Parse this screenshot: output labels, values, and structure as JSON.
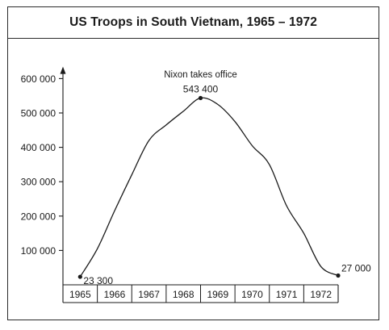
{
  "chart_data": {
    "type": "line",
    "title": "US Troops in South Vietnam, 1965 – 1972",
    "xlabel": "",
    "ylabel": "",
    "categories": [
      "1965",
      "1966",
      "1967",
      "1968",
      "1969",
      "1970",
      "1971",
      "1972"
    ],
    "y_ticks": [
      {
        "value": 100000,
        "label": "100 000"
      },
      {
        "value": 200000,
        "label": "200 000"
      },
      {
        "value": 300000,
        "label": "300 000"
      },
      {
        "value": 400000,
        "label": "400 000"
      },
      {
        "value": 500000,
        "label": "500 000"
      },
      {
        "value": 600000,
        "label": "600 000"
      }
    ],
    "ylim": [
      0,
      630000
    ],
    "x": [
      1965.0,
      1965.5,
      1966.0,
      1966.5,
      1967.0,
      1967.5,
      1968.0,
      1968.5,
      1969.0,
      1969.5,
      1970.0,
      1970.5,
      1971.0,
      1971.5,
      1972.0,
      1972.5
    ],
    "values": [
      23300,
      105000,
      215000,
      320000,
      420000,
      465000,
      505000,
      543400,
      525000,
      475000,
      405000,
      350000,
      230000,
      150000,
      53000,
      27000
    ],
    "markers": [
      {
        "x": 1965.0,
        "y": 23300,
        "label": "23 300"
      },
      {
        "x": 1968.5,
        "y": 543400,
        "label": "543 400"
      },
      {
        "x": 1972.5,
        "y": 27000,
        "label": "27 000"
      }
    ],
    "annotations": [
      {
        "text": "Nixon takes office",
        "x": 1968.5
      }
    ],
    "grid": false,
    "line_color": "#1a1a1a"
  }
}
